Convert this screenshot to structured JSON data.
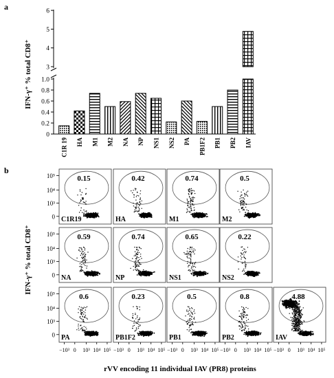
{
  "chart_data": [
    {
      "type": "bar",
      "panel_label": "a",
      "ylabel": "IFN-γ⁺ % total CD8⁺",
      "categories": [
        "C1R 19",
        "HA",
        "M1",
        "M2",
        "NA",
        "NP",
        "NS1",
        "NS2",
        "PA",
        "PB1F2",
        "PB1",
        "PB2",
        "IAV"
      ],
      "values": [
        0.15,
        0.42,
        0.74,
        0.5,
        0.59,
        0.74,
        0.65,
        0.22,
        0.6,
        0.23,
        0.5,
        0.8,
        4.88
      ],
      "patterns": [
        "dots",
        "checker",
        "hlines",
        "vlines",
        "diag",
        "diag-rev",
        "grid",
        "dots",
        "diag-rev",
        "dots",
        "vlines",
        "hlines",
        "grid"
      ],
      "y_axis_break": true,
      "ylim_lower": [
        0,
        1.0
      ],
      "ylim_upper": [
        3,
        6
      ],
      "yticks_lower": [
        "0",
        "0.2",
        "0.4",
        "0.6",
        "0.8",
        "1.0"
      ],
      "yticks_upper": [
        "3",
        "4",
        "5",
        "6"
      ],
      "grid": false,
      "legend": "none"
    },
    {
      "type": "scatter",
      "panel_label": "b",
      "ylabel": "IFN-γ⁺ % total CD8⁺",
      "xlabel": "rVV encoding 11 individual IAV (PR8) proteins",
      "xticks": [
        "−10³",
        "0",
        "10³",
        "10⁴",
        "10⁵"
      ],
      "yticks": [
        "0",
        "10³",
        "10⁴",
        "10⁵"
      ],
      "panels": [
        {
          "name": "C1R19",
          "value": "0.15"
        },
        {
          "name": "HA",
          "value": "0.42"
        },
        {
          "name": "M1",
          "value": "0.74"
        },
        {
          "name": "M2",
          "value": "0.5"
        },
        {
          "name": "NA",
          "value": "0.59"
        },
        {
          "name": "NP",
          "value": "0.74"
        },
        {
          "name": "NS1",
          "value": "0.65"
        },
        {
          "name": "NS2",
          "value": "0.22"
        },
        {
          "name": "PA",
          "value": "0.6"
        },
        {
          "name": "PB1F2",
          "value": "0.23"
        },
        {
          "name": "PB1",
          "value": "0.5"
        },
        {
          "name": "PB2",
          "value": "0.8"
        },
        {
          "name": "IAV",
          "value": "4.88"
        }
      ]
    }
  ]
}
